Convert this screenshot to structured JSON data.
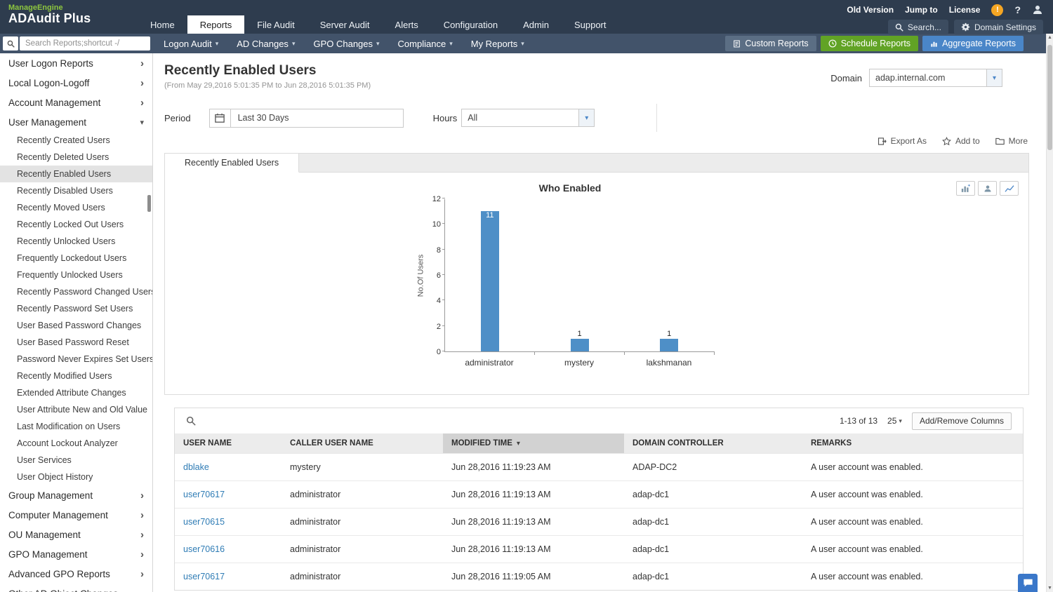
{
  "brand": {
    "company": "ManageEngine",
    "product": "ADAudit Plus"
  },
  "header": {
    "nav": [
      {
        "label": "Home",
        "active": false
      },
      {
        "label": "Reports",
        "active": true
      },
      {
        "label": "File Audit",
        "active": false
      },
      {
        "label": "Server Audit",
        "active": false
      },
      {
        "label": "Alerts",
        "active": false
      },
      {
        "label": "Configuration",
        "active": false
      },
      {
        "label": "Admin",
        "active": false
      },
      {
        "label": "Support",
        "active": false
      }
    ],
    "links": [
      "Old Version",
      "Jump to",
      "License"
    ],
    "search_label": "Search...",
    "domain_settings_label": "Domain Settings"
  },
  "toolbar": {
    "search_placeholder": "Search Reports;shortcut -/",
    "menus": [
      "Logon Audit",
      "AD Changes",
      "GPO Changes",
      "Compliance",
      "My Reports"
    ],
    "buttons": [
      {
        "label": "Custom Reports",
        "color": "#5b6e84"
      },
      {
        "label": "Schedule Reports",
        "color": "#61a325"
      },
      {
        "label": "Aggregate Reports",
        "color": "#4a86c8"
      }
    ]
  },
  "sidebar": {
    "items": [
      {
        "label": "User Logon Reports",
        "type": "group"
      },
      {
        "label": "Local Logon-Logoff",
        "type": "group"
      },
      {
        "label": "Account Management",
        "type": "group"
      },
      {
        "label": "User Management",
        "type": "group",
        "expanded": true
      },
      {
        "label": "Recently Created Users",
        "type": "sub"
      },
      {
        "label": "Recently Deleted Users",
        "type": "sub"
      },
      {
        "label": "Recently Enabled Users",
        "type": "sub",
        "selected": true
      },
      {
        "label": "Recently Disabled Users",
        "type": "sub"
      },
      {
        "label": "Recently Moved Users",
        "type": "sub"
      },
      {
        "label": "Recently Locked Out Users",
        "type": "sub"
      },
      {
        "label": "Recently Unlocked Users",
        "type": "sub"
      },
      {
        "label": "Frequently Lockedout Users",
        "type": "sub"
      },
      {
        "label": "Frequently Unlocked Users",
        "type": "sub"
      },
      {
        "label": "Recently Password Changed Users",
        "type": "sub"
      },
      {
        "label": "Recently Password Set Users",
        "type": "sub"
      },
      {
        "label": "User Based Password Changes",
        "type": "sub"
      },
      {
        "label": "User Based Password Reset",
        "type": "sub"
      },
      {
        "label": "Password Never Expires Set Users",
        "type": "sub"
      },
      {
        "label": "Recently Modified Users",
        "type": "sub"
      },
      {
        "label": "Extended Attribute Changes",
        "type": "sub"
      },
      {
        "label": "User Attribute New and Old Value",
        "type": "sub"
      },
      {
        "label": "Last Modification on Users",
        "type": "sub"
      },
      {
        "label": "Account Lockout Analyzer",
        "type": "sub"
      },
      {
        "label": "User Services",
        "type": "sub"
      },
      {
        "label": "User Object History",
        "type": "sub"
      },
      {
        "label": "Group Management",
        "type": "group"
      },
      {
        "label": "Computer Management",
        "type": "group"
      },
      {
        "label": "OU Management",
        "type": "group"
      },
      {
        "label": "GPO Management",
        "type": "group"
      },
      {
        "label": "Advanced GPO Reports",
        "type": "group"
      },
      {
        "label": "Other AD Object Changes",
        "type": "group"
      }
    ]
  },
  "main": {
    "title": "Recently Enabled Users",
    "date_range": "(From May 29,2016 5:01:35 PM to Jun 28,2016 5:01:35 PM)",
    "domain_label": "Domain",
    "domain_value": "adap.internal.com",
    "period_label": "Period",
    "period_value": "Last 30 Days",
    "hours_label": "Hours",
    "hours_value": "All",
    "actions": [
      "Export As",
      "Add to",
      "More"
    ],
    "tab_label": "Recently Enabled Users"
  },
  "chart_data": {
    "type": "bar",
    "title": "Who Enabled",
    "categories": [
      "administrator",
      "mystery",
      "lakshmanan"
    ],
    "values": [
      11,
      1,
      1
    ],
    "xlabel": "",
    "ylabel": "No.Of Users",
    "ylim": [
      0,
      12
    ],
    "yticks": [
      0,
      2,
      4,
      6,
      8,
      10,
      12
    ],
    "bar_color": "#4e8fc7",
    "grid": false,
    "legend": false
  },
  "table": {
    "pagination": "1-13 of 13",
    "page_size": "25",
    "add_remove_label": "Add/Remove Columns",
    "columns": [
      "USER NAME",
      "CALLER USER NAME",
      "MODIFIED TIME",
      "DOMAIN CONTROLLER",
      "REMARKS"
    ],
    "sorted_column": "MODIFIED TIME",
    "sort_direction": "desc",
    "rows": [
      {
        "user_name": "dblake",
        "caller_user_name": "mystery",
        "modified_time": "Jun 28,2016 11:19:23 AM",
        "domain_controller": "ADAP-DC2",
        "remarks": "A user account was enabled."
      },
      {
        "user_name": "user70617",
        "caller_user_name": "administrator",
        "modified_time": "Jun 28,2016 11:19:13 AM",
        "domain_controller": "adap-dc1",
        "remarks": "A user account was enabled."
      },
      {
        "user_name": "user70615",
        "caller_user_name": "administrator",
        "modified_time": "Jun 28,2016 11:19:13 AM",
        "domain_controller": "adap-dc1",
        "remarks": "A user account was enabled."
      },
      {
        "user_name": "user70616",
        "caller_user_name": "administrator",
        "modified_time": "Jun 28,2016 11:19:13 AM",
        "domain_controller": "adap-dc1",
        "remarks": "A user account was enabled."
      },
      {
        "user_name": "user70617",
        "caller_user_name": "administrator",
        "modified_time": "Jun 28,2016 11:19:05 AM",
        "domain_controller": "adap-dc1",
        "remarks": "A user account was enabled."
      }
    ]
  },
  "colors": {
    "link": "#2f7cb5",
    "header_bg": "#2e3c4e",
    "toolbar_bg": "#42536a",
    "logo_green": "#8dc63f"
  }
}
